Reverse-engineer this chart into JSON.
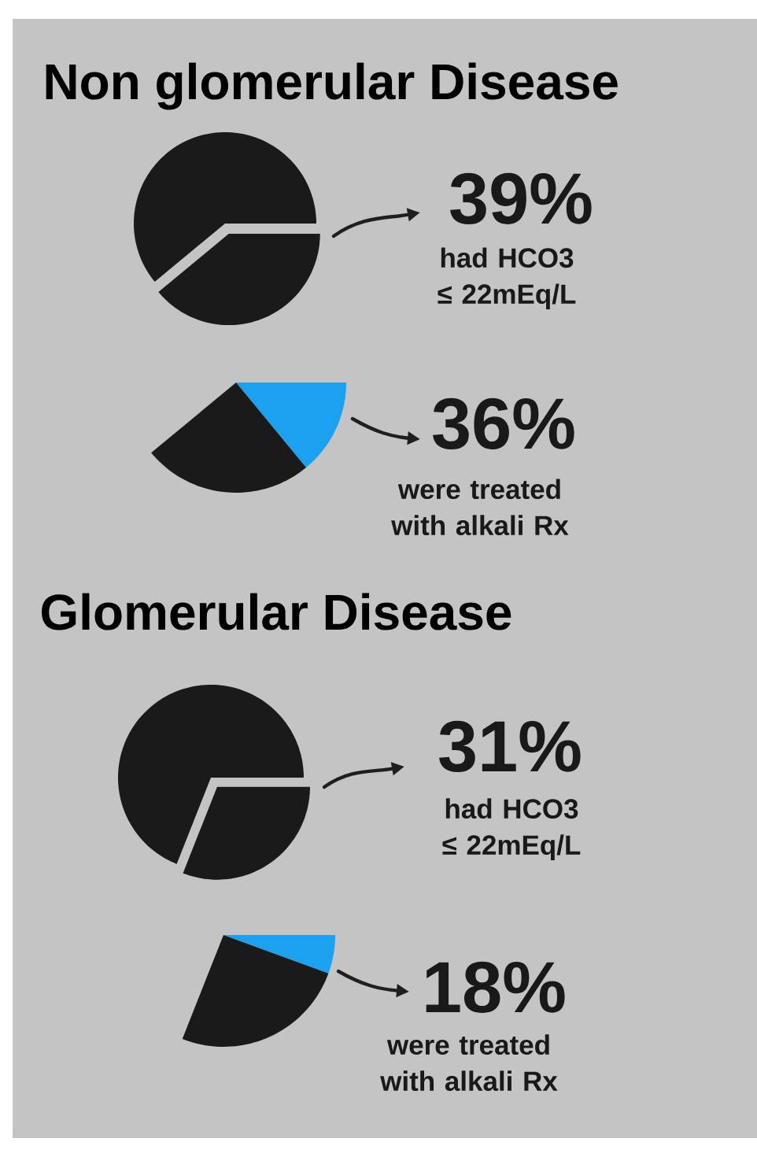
{
  "chart_data": [
    {
      "type": "pie",
      "title": "Non glomerular Disease",
      "categories": [
        null,
        null
      ],
      "values": [
        39,
        61
      ],
      "colors": [
        "#1a1a1a",
        "#1a1a1a"
      ],
      "value_labels": [
        "39%",
        null
      ],
      "annotations": [
        "had HCO3 ≤ 22mEq/L"
      ]
    },
    {
      "type": "pie",
      "categories": [
        null,
        null
      ],
      "values": [
        36,
        64
      ],
      "colors": [
        "#1ba1f0",
        "#1a1a1a"
      ],
      "value_labels": [
        "36%",
        null
      ],
      "annotations": [
        "were treated with alkali Rx"
      ]
    },
    {
      "type": "pie",
      "title": "Glomerular Disease",
      "categories": [
        null,
        null
      ],
      "values": [
        31,
        69
      ],
      "colors": [
        "#1a1a1a",
        "#1a1a1a"
      ],
      "value_labels": [
        "31%",
        null
      ],
      "annotations": [
        "had HCO3 ≤ 22mEq/L"
      ]
    },
    {
      "type": "pie",
      "categories": [
        null,
        null
      ],
      "values": [
        18,
        82
      ],
      "colors": [
        "#1ba1f0",
        "#1a1a1a"
      ],
      "value_labels": [
        "18%",
        null
      ],
      "annotations": [
        "were treated with alkali Rx"
      ]
    }
  ]
}
